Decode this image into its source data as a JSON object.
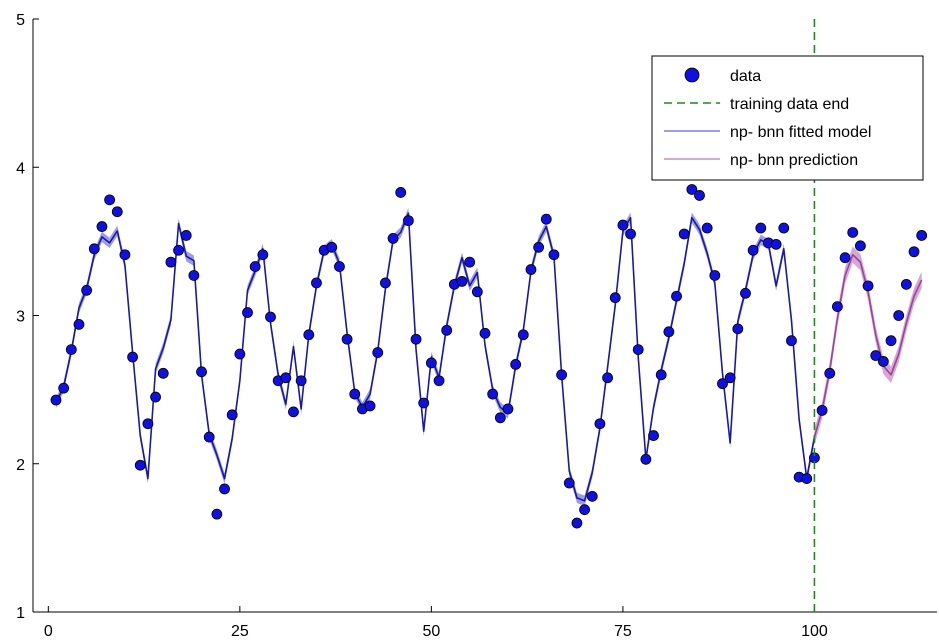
{
  "chart_data": {
    "type": "line",
    "title": "",
    "xlabel": "",
    "ylabel": "",
    "xlim": [
      -2,
      116
    ],
    "ylim": [
      1,
      5
    ],
    "x_ticks": [
      0,
      25,
      50,
      75,
      100
    ],
    "x_tick_labels": [
      "0",
      "25",
      "50",
      "75",
      "100"
    ],
    "y_ticks": [
      1,
      2,
      3,
      4,
      5
    ],
    "y_tick_labels": [
      "1",
      "2",
      "3",
      "4",
      "5"
    ],
    "grid": false,
    "legend_position": "top-right",
    "colors": {
      "data": "#1010e0",
      "data_edge": "#000000",
      "fitted": "#1a1aa0",
      "fitted_band": "#7b7be6",
      "prediction": "#a040a0",
      "prediction_band": "#c58ac5",
      "training_end": "#1a8c1a"
    },
    "series": [
      {
        "name": "data",
        "kind": "scatter",
        "points": [
          [
            1,
            2.43
          ],
          [
            2,
            2.51
          ],
          [
            3,
            2.77
          ],
          [
            4,
            2.94
          ],
          [
            5,
            3.17
          ],
          [
            6,
            3.45
          ],
          [
            7,
            3.6
          ],
          [
            8,
            3.78
          ],
          [
            9,
            3.7
          ],
          [
            10,
            3.41
          ],
          [
            11,
            2.72
          ],
          [
            12,
            1.99
          ],
          [
            13,
            2.27
          ],
          [
            14,
            2.45
          ],
          [
            15,
            2.61
          ],
          [
            16,
            3.36
          ],
          [
            17,
            3.44
          ],
          [
            18,
            3.54
          ],
          [
            19,
            3.27
          ],
          [
            20,
            2.62
          ],
          [
            21,
            2.18
          ],
          [
            22,
            1.66
          ],
          [
            23,
            1.83
          ],
          [
            24,
            2.33
          ],
          [
            25,
            2.74
          ],
          [
            26,
            3.02
          ],
          [
            27,
            3.33
          ],
          [
            28,
            3.41
          ],
          [
            29,
            2.99
          ],
          [
            30,
            2.56
          ],
          [
            31,
            2.58
          ],
          [
            32,
            2.35
          ],
          [
            33,
            2.56
          ],
          [
            34,
            2.87
          ],
          [
            35,
            3.22
          ],
          [
            36,
            3.44
          ],
          [
            37,
            3.46
          ],
          [
            38,
            3.33
          ],
          [
            39,
            2.84
          ],
          [
            40,
            2.47
          ],
          [
            41,
            2.37
          ],
          [
            42,
            2.39
          ],
          [
            43,
            2.75
          ],
          [
            44,
            3.22
          ],
          [
            45,
            3.52
          ],
          [
            46,
            3.83
          ],
          [
            47,
            3.64
          ],
          [
            48,
            2.84
          ],
          [
            49,
            2.41
          ],
          [
            50,
            2.68
          ],
          [
            51,
            2.56
          ],
          [
            52,
            2.9
          ],
          [
            53,
            3.21
          ],
          [
            54,
            3.23
          ],
          [
            55,
            3.36
          ],
          [
            56,
            3.16
          ],
          [
            57,
            2.88
          ],
          [
            58,
            2.47
          ],
          [
            59,
            2.31
          ],
          [
            60,
            2.37
          ],
          [
            61,
            2.67
          ],
          [
            62,
            2.87
          ],
          [
            63,
            3.31
          ],
          [
            64,
            3.46
          ],
          [
            65,
            3.65
          ],
          [
            66,
            3.41
          ],
          [
            67,
            2.6
          ],
          [
            68,
            1.87
          ],
          [
            69,
            1.6
          ],
          [
            70,
            1.69
          ],
          [
            71,
            1.78
          ],
          [
            72,
            2.27
          ],
          [
            73,
            2.58
          ],
          [
            74,
            3.12
          ],
          [
            75,
            3.61
          ],
          [
            76,
            3.55
          ],
          [
            77,
            2.77
          ],
          [
            78,
            2.03
          ],
          [
            79,
            2.19
          ],
          [
            80,
            2.6
          ],
          [
            81,
            2.89
          ],
          [
            82,
            3.13
          ],
          [
            83,
            3.55
          ],
          [
            84,
            3.85
          ],
          [
            85,
            3.81
          ],
          [
            86,
            3.59
          ],
          [
            87,
            3.27
          ],
          [
            88,
            2.54
          ],
          [
            89,
            2.58
          ],
          [
            90,
            2.91
          ],
          [
            91,
            3.15
          ],
          [
            92,
            3.44
          ],
          [
            93,
            3.59
          ],
          [
            94,
            3.49
          ],
          [
            95,
            3.48
          ],
          [
            96,
            3.59
          ],
          [
            97,
            2.83
          ],
          [
            98,
            1.91
          ],
          [
            99,
            1.9
          ],
          [
            100,
            2.04
          ],
          [
            101,
            2.36
          ],
          [
            102,
            2.61
          ],
          [
            103,
            3.06
          ],
          [
            104,
            3.39
          ],
          [
            105,
            3.56
          ],
          [
            106,
            3.47
          ],
          [
            107,
            3.2
          ],
          [
            108,
            2.73
          ],
          [
            109,
            2.69
          ],
          [
            110,
            2.83
          ],
          [
            111,
            3.0
          ],
          [
            112,
            3.21
          ],
          [
            113,
            3.43
          ],
          [
            114,
            3.54
          ]
        ]
      },
      {
        "name": "np- bnn fitted model",
        "kind": "line_band",
        "points": [
          [
            1,
            2.41
          ],
          [
            2,
            2.52
          ],
          [
            3,
            2.76
          ],
          [
            4,
            3.05
          ],
          [
            5,
            3.18
          ],
          [
            6,
            3.41
          ],
          [
            7,
            3.53
          ],
          [
            8,
            3.49
          ],
          [
            9,
            3.57
          ],
          [
            10,
            3.34
          ],
          [
            11,
            2.75
          ],
          [
            12,
            2.19
          ],
          [
            13,
            1.9
          ],
          [
            14,
            2.64
          ],
          [
            15,
            2.78
          ],
          [
            16,
            2.97
          ],
          [
            17,
            3.62
          ],
          [
            18,
            3.4
          ],
          [
            19,
            3.37
          ],
          [
            20,
            2.6
          ],
          [
            21,
            2.2
          ],
          [
            22,
            2.06
          ],
          [
            23,
            1.9
          ],
          [
            24,
            2.17
          ],
          [
            25,
            2.56
          ],
          [
            26,
            3.17
          ],
          [
            27,
            3.3
          ],
          [
            28,
            3.45
          ],
          [
            29,
            2.95
          ],
          [
            30,
            2.6
          ],
          [
            31,
            2.4
          ],
          [
            32,
            2.79
          ],
          [
            33,
            2.37
          ],
          [
            34,
            2.87
          ],
          [
            35,
            3.2
          ],
          [
            36,
            3.44
          ],
          [
            37,
            3.48
          ],
          [
            38,
            3.35
          ],
          [
            39,
            2.88
          ],
          [
            40,
            2.48
          ],
          [
            41,
            2.38
          ],
          [
            42,
            2.47
          ],
          [
            43,
            2.76
          ],
          [
            44,
            3.18
          ],
          [
            45,
            3.51
          ],
          [
            46,
            3.56
          ],
          [
            47,
            3.69
          ],
          [
            48,
            2.77
          ],
          [
            49,
            2.22
          ],
          [
            50,
            2.72
          ],
          [
            51,
            2.58
          ],
          [
            52,
            2.93
          ],
          [
            53,
            3.2
          ],
          [
            54,
            3.39
          ],
          [
            55,
            3.2
          ],
          [
            56,
            3.29
          ],
          [
            57,
            2.8
          ],
          [
            58,
            2.5
          ],
          [
            59,
            2.38
          ],
          [
            60,
            2.34
          ],
          [
            61,
            2.66
          ],
          [
            62,
            2.9
          ],
          [
            63,
            3.3
          ],
          [
            64,
            3.5
          ],
          [
            65,
            3.6
          ],
          [
            66,
            3.4
          ],
          [
            67,
            2.6
          ],
          [
            68,
            1.95
          ],
          [
            69,
            1.77
          ],
          [
            70,
            1.75
          ],
          [
            71,
            1.94
          ],
          [
            72,
            2.24
          ],
          [
            73,
            2.65
          ],
          [
            74,
            3.07
          ],
          [
            75,
            3.57
          ],
          [
            76,
            3.66
          ],
          [
            77,
            2.72
          ],
          [
            78,
            2.03
          ],
          [
            79,
            2.38
          ],
          [
            80,
            2.63
          ],
          [
            81,
            2.85
          ],
          [
            82,
            3.1
          ],
          [
            83,
            3.35
          ],
          [
            84,
            3.66
          ],
          [
            85,
            3.58
          ],
          [
            86,
            3.42
          ],
          [
            87,
            3.22
          ],
          [
            88,
            2.61
          ],
          [
            89,
            2.14
          ],
          [
            90,
            2.96
          ],
          [
            91,
            3.17
          ],
          [
            92,
            3.41
          ],
          [
            93,
            3.51
          ],
          [
            94,
            3.48
          ],
          [
            95,
            3.2
          ],
          [
            96,
            3.45
          ],
          [
            97,
            2.97
          ],
          [
            98,
            2.3
          ],
          [
            99,
            1.9
          ],
          [
            100,
            2.18
          ]
        ],
        "band": 0.035
      },
      {
        "name": "np- bnn prediction",
        "kind": "line_band",
        "points": [
          [
            100,
            2.18
          ],
          [
            101,
            2.36
          ],
          [
            102,
            2.63
          ],
          [
            103,
            2.98
          ],
          [
            104,
            3.27
          ],
          [
            105,
            3.41
          ],
          [
            106,
            3.36
          ],
          [
            107,
            3.16
          ],
          [
            108,
            2.87
          ],
          [
            109,
            2.66
          ],
          [
            110,
            2.6
          ],
          [
            111,
            2.74
          ],
          [
            112,
            2.95
          ],
          [
            113,
            3.13
          ],
          [
            114,
            3.24
          ]
        ],
        "band": 0.055
      },
      {
        "name": "training data end",
        "kind": "vline",
        "x": 100
      }
    ]
  }
}
